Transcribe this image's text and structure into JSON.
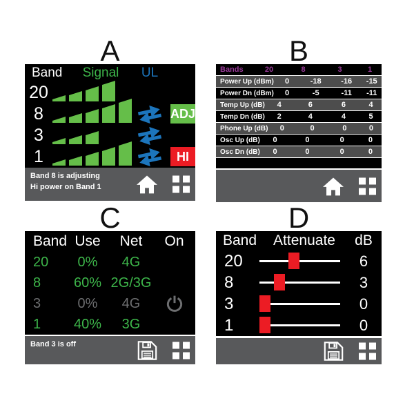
{
  "colors": {
    "green_bar": "#65BE49",
    "green_text": "#3DB54A",
    "blue": "#1C75BC",
    "red": "#EC1C24",
    "magenta": "#9A3A9A",
    "bar_gray": "#58595B",
    "row_gray": "#4D4D4D",
    "disabled_gray": "#6D6E70"
  },
  "icons": {
    "home": "home-icon",
    "menu": "menu-grid-icon",
    "save": "save-icon",
    "power": "power-icon",
    "sync": "sync-arrows-icon"
  },
  "panel_a": {
    "label": "A",
    "col_band": "Band",
    "col_signal": "Signal",
    "col_ul": "UL",
    "rows": [
      {
        "band": "20",
        "bars": 4,
        "sync": false,
        "button": "",
        "button_color": ""
      },
      {
        "band": "8",
        "bars": 5,
        "sync": true,
        "button": "ADJ",
        "button_color": "green"
      },
      {
        "band": "3",
        "bars": 3,
        "sync": true,
        "button": "",
        "button_color": ""
      },
      {
        "band": "1",
        "bars": 5,
        "sync": true,
        "button": "HI",
        "button_color": "red"
      }
    ],
    "status_line1": "Band 8 is adjusting",
    "status_line2": "Hi power on Band 1",
    "bottom_icons": [
      "home-icon",
      "menu-grid-icon"
    ]
  },
  "panel_b": {
    "label": "B",
    "header": [
      "Bands",
      "20",
      "8",
      "3",
      "1"
    ],
    "rows": [
      {
        "label": "Power Up (dBm)",
        "values": [
          "0",
          "-18",
          "-16",
          "-15"
        ]
      },
      {
        "label": "Power Dn (dBm)",
        "values": [
          "0",
          "-5",
          "-11",
          "-11"
        ]
      },
      {
        "label": "Temp Up (dB)",
        "values": [
          "4",
          "6",
          "6",
          "4"
        ]
      },
      {
        "label": "Temp Dn (dB)",
        "values": [
          "2",
          "4",
          "4",
          "5"
        ]
      },
      {
        "label": "Phone Up (dB)",
        "values": [
          "0",
          "0",
          "0",
          "0"
        ]
      },
      {
        "label": "Osc Up (dB)",
        "values": [
          "0",
          "0",
          "0",
          "0"
        ]
      },
      {
        "label": "Osc Dn (dB)",
        "values": [
          "0",
          "0",
          "0",
          "0"
        ]
      }
    ],
    "bottom_icons": [
      "home-icon",
      "menu-grid-icon"
    ]
  },
  "panel_c": {
    "label": "C",
    "header": [
      "Band",
      "Use",
      "Net",
      "On"
    ],
    "rows": [
      {
        "band": "20",
        "use": "0%",
        "net": "4G",
        "enabled": true,
        "power_icon": false
      },
      {
        "band": "8",
        "use": "60%",
        "net": "2G/3G",
        "enabled": true,
        "power_icon": false
      },
      {
        "band": "3",
        "use": "0%",
        "net": "4G",
        "enabled": false,
        "power_icon": true
      },
      {
        "band": "1",
        "use": "40%",
        "net": "3G",
        "enabled": true,
        "power_icon": false
      }
    ],
    "status": "Band 3 is off",
    "bottom_icons": [
      "save-icon",
      "menu-grid-icon"
    ]
  },
  "panel_d": {
    "label": "D",
    "col_band": "Band",
    "col_attenuate": "Attenuate",
    "col_db": "dB",
    "rows": [
      {
        "band": "20",
        "db": "6",
        "slider_pct": 42
      },
      {
        "band": "8",
        "db": "3",
        "slider_pct": 21
      },
      {
        "band": "3",
        "db": "0",
        "slider_pct": 0
      },
      {
        "band": "1",
        "db": "0",
        "slider_pct": 0
      }
    ],
    "bottom_icons": [
      "save-icon",
      "menu-grid-icon"
    ]
  }
}
